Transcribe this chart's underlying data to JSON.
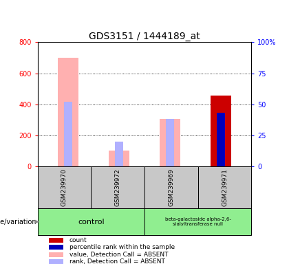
{
  "title": "GDS3151 / 1444189_at",
  "samples": [
    "GSM239970",
    "GSM239972",
    "GSM239969",
    "GSM239971"
  ],
  "ylim_left": [
    0,
    800
  ],
  "ylim_right": [
    0,
    100
  ],
  "yticks_left": [
    0,
    200,
    400,
    600,
    800
  ],
  "yticks_right": [
    0,
    25,
    50,
    75,
    100
  ],
  "bar_data": {
    "GSM239970": {
      "value_absent": 700,
      "rank_absent": 52,
      "count": null,
      "percentile": null
    },
    "GSM239972": {
      "value_absent": 100,
      "rank_absent": 20,
      "count": null,
      "percentile": null
    },
    "GSM239969": {
      "value_absent": 305,
      "rank_absent": 38,
      "count": null,
      "percentile": null
    },
    "GSM239971": {
      "value_absent": null,
      "rank_absent": null,
      "count": 455,
      "percentile": 43
    }
  },
  "colors": {
    "count": "#CC0000",
    "percentile": "#0000BB",
    "value_absent": "#FFB0B0",
    "rank_absent": "#B0B0FF"
  },
  "background_color": "#ffffff",
  "group_color": "#90EE90",
  "gray_box_color": "#C8C8C8",
  "genotype_label": "genotype/variation",
  "group_label_1": "control",
  "group_label_2": "beta-galactoside alpha-2,6-\nsialyltransferase null",
  "legend_items": [
    {
      "label": "count",
      "color": "#CC0000"
    },
    {
      "label": "percentile rank within the sample",
      "color": "#0000BB"
    },
    {
      "label": "value, Detection Call = ABSENT",
      "color": "#FFB0B0"
    },
    {
      "label": "rank, Detection Call = ABSENT",
      "color": "#B0B0FF"
    }
  ]
}
